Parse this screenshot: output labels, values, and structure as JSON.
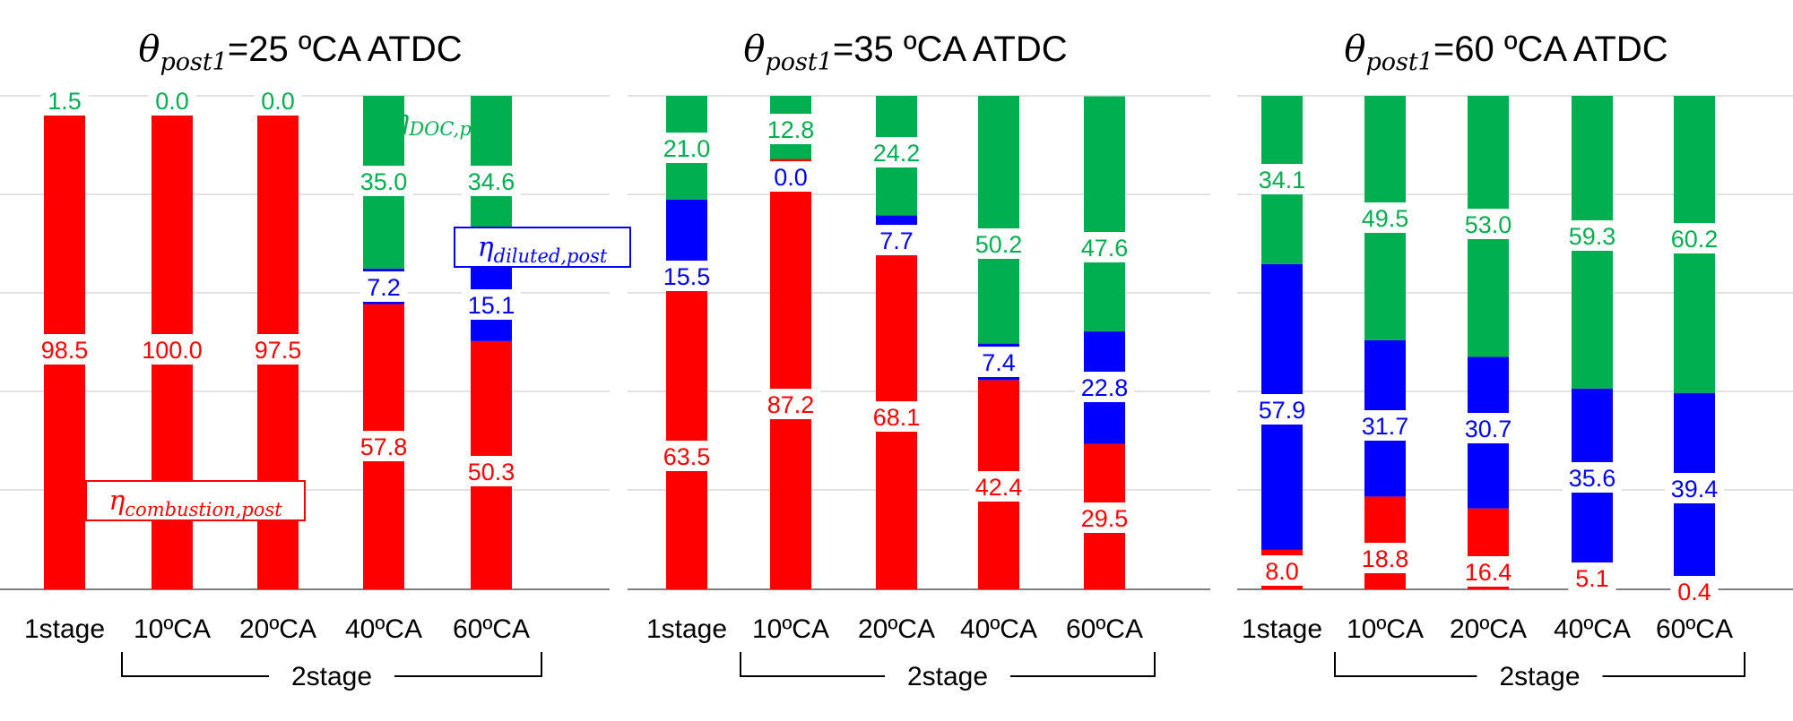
{
  "colors": {
    "combustion": "#ff0000",
    "diluted": "#0000ff",
    "doc": "#00b050",
    "grid": "#d9d9d9",
    "axis": "#808080",
    "text": "#000000"
  },
  "annotations": {
    "doc": {
      "symbol": "η",
      "sub": "DOC,post"
    },
    "diluted": {
      "symbol": "η",
      "sub": "diluted,post"
    },
    "combustion": {
      "symbol": "η",
      "sub": "combustion,post"
    }
  },
  "group_label": "2stage",
  "chart_data": [
    {
      "type": "bar",
      "stacked": true,
      "title": {
        "symbol": "θ",
        "sub": "post1",
        "text": "=25 ºCA ATDC"
      },
      "categories": [
        "1stage",
        "10ºCA",
        "20ºCA",
        "40ºCA",
        "60ºCA"
      ],
      "ylim": [
        0,
        100
      ],
      "grid": true,
      "series": [
        {
          "name": "η combustion,post",
          "key": "combustion",
          "values": [
            98.5,
            100.0,
            97.5,
            57.8,
            50.3
          ],
          "labels": [
            "98.5",
            "100.0",
            "97.5",
            "57.8",
            "50.3"
          ]
        },
        {
          "name": "η diluted,post",
          "key": "diluted",
          "values": [
            0,
            0,
            0,
            7.2,
            15.1
          ],
          "labels": [
            "",
            "",
            "",
            "7.2",
            "15.1"
          ]
        },
        {
          "name": "η DOC,post",
          "key": "doc",
          "values": [
            1.5,
            0.0,
            0.0,
            35.0,
            34.6
          ],
          "labels": [
            "1.5",
            "0.0",
            "0.0",
            "35.0",
            "34.6"
          ]
        }
      ]
    },
    {
      "type": "bar",
      "stacked": true,
      "title": {
        "symbol": "θ",
        "sub": "post1",
        "text": "=35 ºCA ATDC"
      },
      "categories": [
        "1stage",
        "10ºCA",
        "20ºCA",
        "40ºCA",
        "60ºCA"
      ],
      "ylim": [
        0,
        100
      ],
      "grid": true,
      "series": [
        {
          "name": "η combustion,post",
          "key": "combustion",
          "values": [
            63.5,
            87.2,
            68.1,
            42.4,
            29.5
          ],
          "labels": [
            "63.5",
            "87.2",
            "68.1",
            "42.4",
            "29.5"
          ]
        },
        {
          "name": "η diluted,post",
          "key": "diluted",
          "values": [
            15.5,
            0.0,
            7.7,
            7.4,
            22.8
          ],
          "labels": [
            "15.5",
            "0.0",
            "7.7",
            "7.4",
            "22.8"
          ]
        },
        {
          "name": "η DOC,post",
          "key": "doc",
          "values": [
            21.0,
            12.8,
            24.2,
            50.2,
            47.6
          ],
          "labels": [
            "21.0",
            "12.8",
            "24.2",
            "50.2",
            "47.6"
          ]
        }
      ]
    },
    {
      "type": "bar",
      "stacked": true,
      "title": {
        "symbol": "θ",
        "sub": "post1",
        "text": "=60 ºCA ATDC"
      },
      "categories": [
        "1stage",
        "10ºCA",
        "20ºCA",
        "40ºCA",
        "60ºCA"
      ],
      "ylim": [
        0,
        100
      ],
      "grid": true,
      "series": [
        {
          "name": "η combustion,post",
          "key": "combustion",
          "values": [
            8.0,
            18.8,
            16.4,
            5.1,
            0.4
          ],
          "labels": [
            "8.0",
            "18.8",
            "16.4",
            "5.1",
            "0.4"
          ]
        },
        {
          "name": "η diluted,post",
          "key": "diluted",
          "values": [
            57.9,
            31.7,
            30.7,
            35.6,
            39.4
          ],
          "labels": [
            "57.9",
            "31.7",
            "30.7",
            "35.6",
            "39.4"
          ]
        },
        {
          "name": "η DOC,post",
          "key": "doc",
          "values": [
            34.1,
            49.5,
            53.0,
            59.3,
            60.2
          ],
          "labels": [
            "34.1",
            "49.5",
            "53.0",
            "59.3",
            "60.2"
          ]
        }
      ]
    }
  ]
}
